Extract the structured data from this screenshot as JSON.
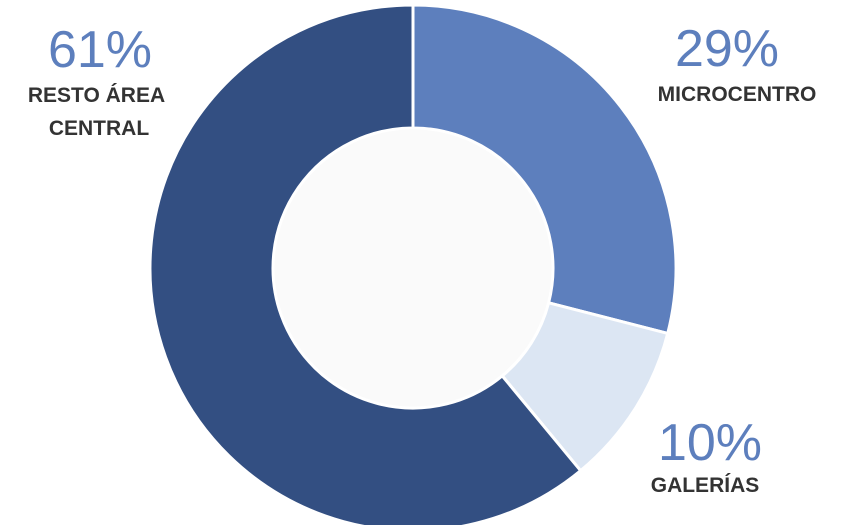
{
  "chart_data": {
    "type": "pie",
    "style": "donut",
    "slices": [
      {
        "label": "MICROCENTRO",
        "value": 29,
        "value_label": "29%",
        "color": "#5d7fbd"
      },
      {
        "label": "GALERÍAS",
        "value": 10,
        "value_label": "10%",
        "color": "#dce6f3"
      },
      {
        "label": "RESTO ÁREA CENTRAL",
        "value": 61,
        "value_label": "61%",
        "color": "#334f82"
      }
    ],
    "label_color": "#5d7fbd",
    "category_color": "#333333",
    "legend": "none"
  }
}
